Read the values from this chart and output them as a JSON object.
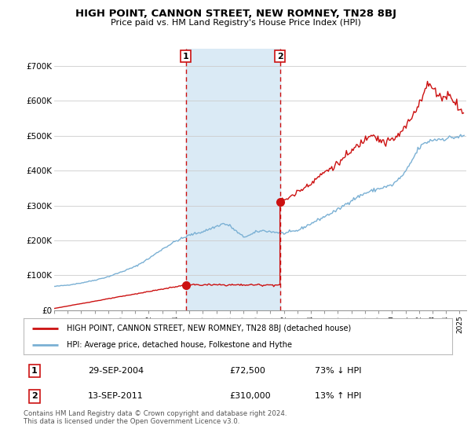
{
  "title": "HIGH POINT, CANNON STREET, NEW ROMNEY, TN28 8BJ",
  "subtitle": "Price paid vs. HM Land Registry's House Price Index (HPI)",
  "ylabel_ticks": [
    "£0",
    "£100K",
    "£200K",
    "£300K",
    "£400K",
    "£500K",
    "£600K",
    "£700K"
  ],
  "ylim": [
    0,
    750000
  ],
  "xlim_start": 1995.0,
  "xlim_end": 2025.5,
  "background_color": "#ffffff",
  "plot_bg_color": "#ffffff",
  "grid_color": "#cccccc",
  "shade_color": "#daeaf5",
  "transaction1_date": 2004.75,
  "transaction1_price": 72500,
  "transaction2_date": 2011.71,
  "transaction2_price": 310000,
  "hpi_color": "#7ab0d4",
  "property_color": "#cc1111",
  "dash_color": "#cc1111",
  "legend_property": "HIGH POINT, CANNON STREET, NEW ROMNEY, TN28 8BJ (detached house)",
  "legend_hpi": "HPI: Average price, detached house, Folkestone and Hythe",
  "table_rows": [
    {
      "num": "1",
      "date": "29-SEP-2004",
      "price": "£72,500",
      "pct": "73% ↓ HPI"
    },
    {
      "num": "2",
      "date": "13-SEP-2011",
      "price": "£310,000",
      "pct": "13% ↑ HPI"
    }
  ],
  "footer": "Contains HM Land Registry data © Crown copyright and database right 2024.\nThis data is licensed under the Open Government Licence v3.0."
}
